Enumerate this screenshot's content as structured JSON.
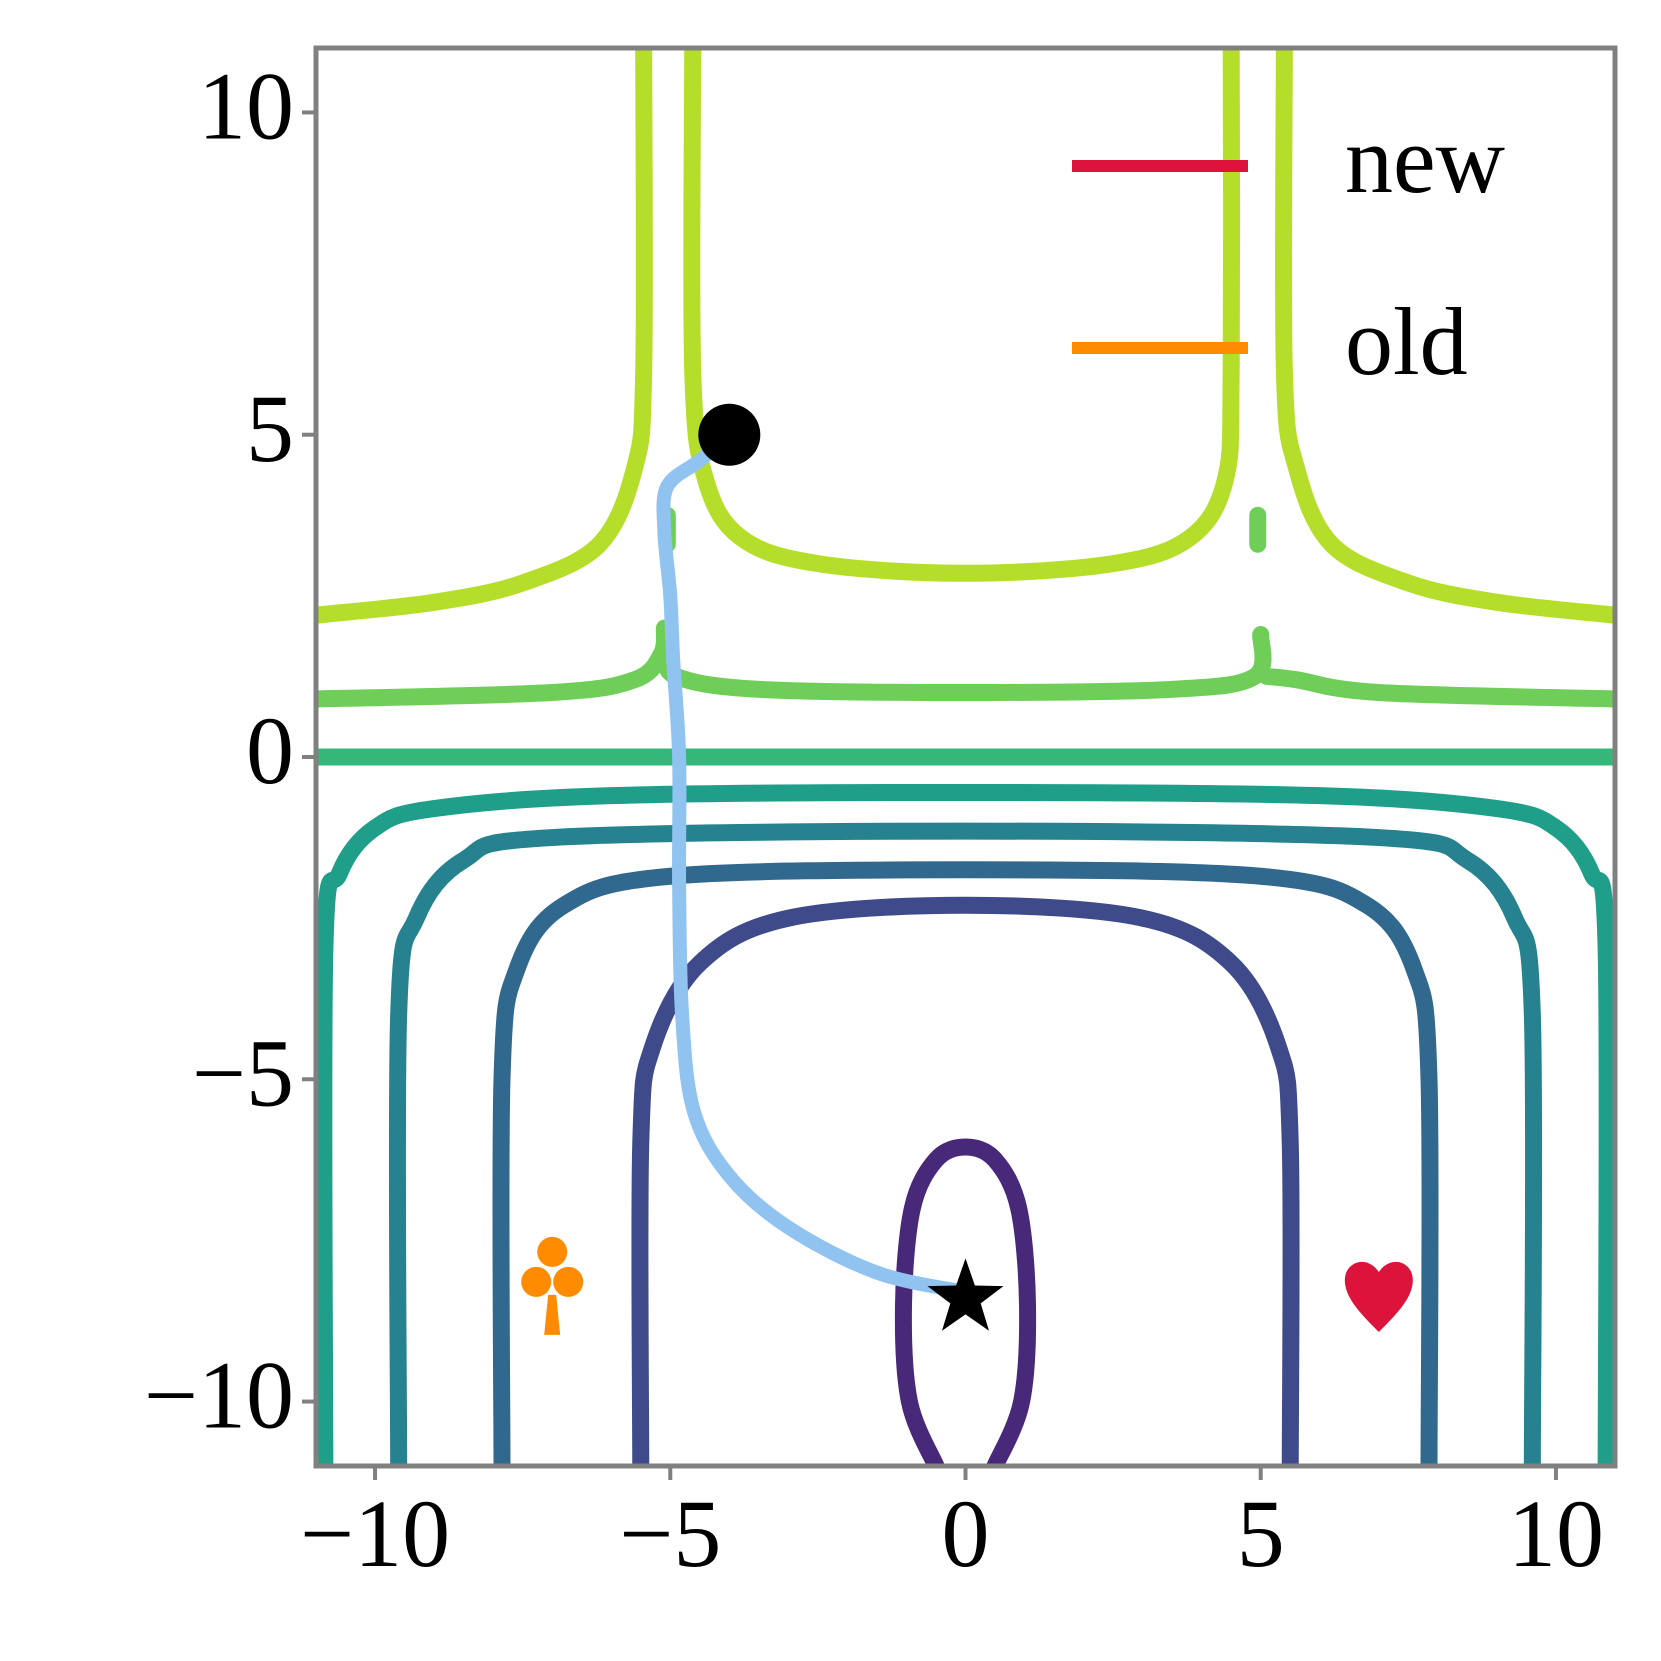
{
  "chart_data": {
    "type": "contour",
    "xlim": [
      -11,
      11
    ],
    "ylim": [
      -11,
      11
    ],
    "xticks": [
      {
        "value": -10,
        "label": "−10"
      },
      {
        "value": -5,
        "label": "−5"
      },
      0,
      5,
      10
    ],
    "yticks": [
      {
        "value": -10,
        "label": "−10"
      },
      {
        "value": -5,
        "label": "−5"
      },
      0,
      5,
      10
    ],
    "contours": [
      {
        "color": "#b5de2b",
        "x": [
          -5.45,
          -5.45,
          -5.6,
          -6.2,
          -7.5,
          -9,
          -11,
          null,
          -4.62,
          -4.62,
          -4.4,
          -3.8,
          -2.5,
          0,
          2.5,
          3.8,
          4.4,
          4.5,
          4.5,
          null,
          5.4,
          5.4,
          5.6,
          6.2,
          7.5,
          9,
          11
        ],
        "y": [
          11,
          6,
          4.5,
          3.3,
          2.7,
          2.4,
          2.2,
          null,
          11,
          6,
          4.3,
          3.4,
          3.0,
          2.85,
          3.0,
          3.4,
          4.3,
          6,
          11,
          null,
          11,
          6,
          4.5,
          3.3,
          2.7,
          2.4,
          2.2
        ]
      },
      {
        "color": "#6ece58",
        "x": [
          -11,
          -7,
          -5.6,
          -5.15,
          -5.1,
          null,
          -5.05,
          -4.9,
          -3.5,
          0,
          3.5,
          4.9,
          5.0,
          null,
          5.1,
          5.6,
          7,
          11,
          null,
          -5.05,
          -5.05,
          null,
          4.95,
          4.95
        ],
        "y": [
          0.9,
          1.0,
          1.2,
          1.6,
          2.0,
          null,
          1.6,
          1.25,
          1.05,
          1.0,
          1.05,
          1.25,
          1.9,
          null,
          1.25,
          1.2,
          1.0,
          0.9,
          null,
          3.75,
          3.3,
          null,
          3.75,
          3.3
        ]
      },
      {
        "color": "#35b779",
        "x": [
          -11,
          0,
          11
        ],
        "y": [
          0,
          0,
          0
        ]
      },
      {
        "color": "#1f9e89",
        "x": [
          -10.85,
          -10.85,
          -10.6,
          -10,
          -9,
          -6,
          0,
          6,
          9,
          10,
          10.6,
          10.85,
          10.85
        ],
        "y": [
          -11,
          -3,
          -1.8,
          -1.1,
          -0.8,
          -0.6,
          -0.55,
          -0.6,
          -0.8,
          -1.1,
          -1.8,
          -3,
          -11
        ]
      },
      {
        "color": "#26828e",
        "x": [
          -9.6,
          -9.6,
          -9.3,
          -8.5,
          -7,
          0,
          7,
          8.5,
          9.3,
          9.6,
          9.6
        ],
        "y": [
          -11,
          -4,
          -2.5,
          -1.6,
          -1.25,
          -1.15,
          -1.25,
          -1.6,
          -2.5,
          -4,
          -11
        ]
      },
      {
        "color": "#31688e",
        "x": [
          -7.85,
          -7.85,
          -7.6,
          -6.8,
          -5,
          0,
          5,
          6.8,
          7.6,
          7.85,
          7.85
        ],
        "y": [
          -11,
          -5,
          -3.3,
          -2.3,
          -1.85,
          -1.75,
          -1.85,
          -2.3,
          -3.3,
          -5,
          -11
        ]
      },
      {
        "color": "#3e4a89",
        "x": [
          -5.5,
          -5.5,
          -5.3,
          -4.5,
          -3,
          0,
          3,
          4.5,
          5.3,
          5.5,
          5.5
        ],
        "y": [
          -11,
          -6,
          -4.5,
          -3.2,
          -2.5,
          -2.3,
          -2.5,
          -3.2,
          -4.5,
          -6,
          -11
        ]
      },
      {
        "color": "#482878",
        "x": [
          -0.5,
          -0.95,
          -1.05,
          -0.9,
          -0.5,
          0,
          0.5,
          0.9,
          1.05,
          0.95,
          0.5
        ],
        "y": [
          -11,
          -10,
          -8.5,
          -7,
          -6.25,
          -6.05,
          -6.25,
          -7,
          -8.5,
          -10,
          -11
        ]
      }
    ],
    "trajectory": {
      "color": "#90c3f0",
      "x": [
        -4,
        -4.5,
        -5.05,
        -5.1,
        -5.0,
        -4.95,
        -4.85,
        -4.85,
        -4.8,
        -4.6,
        -4,
        -3,
        -1.5,
        0
      ],
      "y": [
        5,
        4.6,
        4.2,
        3.5,
        2.5,
        1.5,
        0,
        -2,
        -4,
        -5.5,
        -6.5,
        -7.3,
        -8,
        -8.3
      ]
    },
    "markers": [
      {
        "shape": "circle",
        "x": -4,
        "y": 5,
        "color": "#000000"
      },
      {
        "shape": "star",
        "x": 0,
        "y": -8.4,
        "color": "#000000"
      },
      {
        "shape": "club",
        "x": -7,
        "y": -8.5,
        "color": "#ff8c00"
      },
      {
        "shape": "heart",
        "x": 7,
        "y": -8.3,
        "color": "#dc143c"
      }
    ],
    "legend": [
      {
        "name": "new",
        "color": "#dc143c"
      },
      {
        "name": "old",
        "color": "#ff8c00"
      }
    ],
    "legend_loc": "upper right"
  }
}
